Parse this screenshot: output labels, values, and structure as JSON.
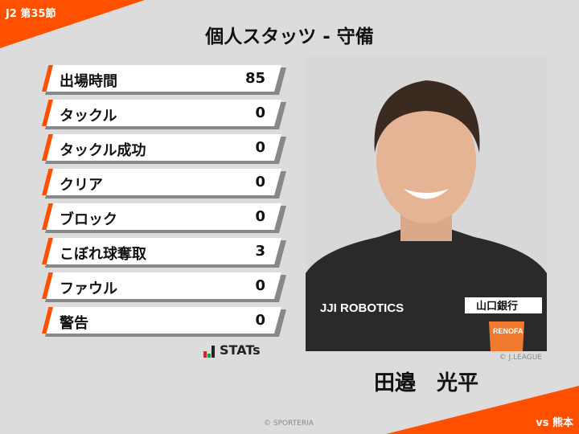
{
  "header": {
    "round": "J2 第35節",
    "title": "個人スタッツ - 守備"
  },
  "stats": [
    {
      "label": "出場時間",
      "value": "85"
    },
    {
      "label": "タックル",
      "value": "0"
    },
    {
      "label": "タックル成功",
      "value": "0"
    },
    {
      "label": "クリア",
      "value": "0"
    },
    {
      "label": "ブロック",
      "value": "0"
    },
    {
      "label": "こぼれ球奪取",
      "value": "3"
    },
    {
      "label": "ファウル",
      "value": "0"
    },
    {
      "label": "警告",
      "value": "0"
    }
  ],
  "logo": {
    "text": "STATs"
  },
  "player": {
    "name": "田邉　光平",
    "photo_credit": "© J.LEAGUE",
    "sponsor_text": "JJI ROBOTICS",
    "club": "RENOFA",
    "bank": "山口銀行"
  },
  "footer": {
    "credit": "© SPORTERIA",
    "opponent": "vs 熊本"
  },
  "colors": {
    "accent": "#ff5000",
    "background": "#dcdcdc"
  }
}
